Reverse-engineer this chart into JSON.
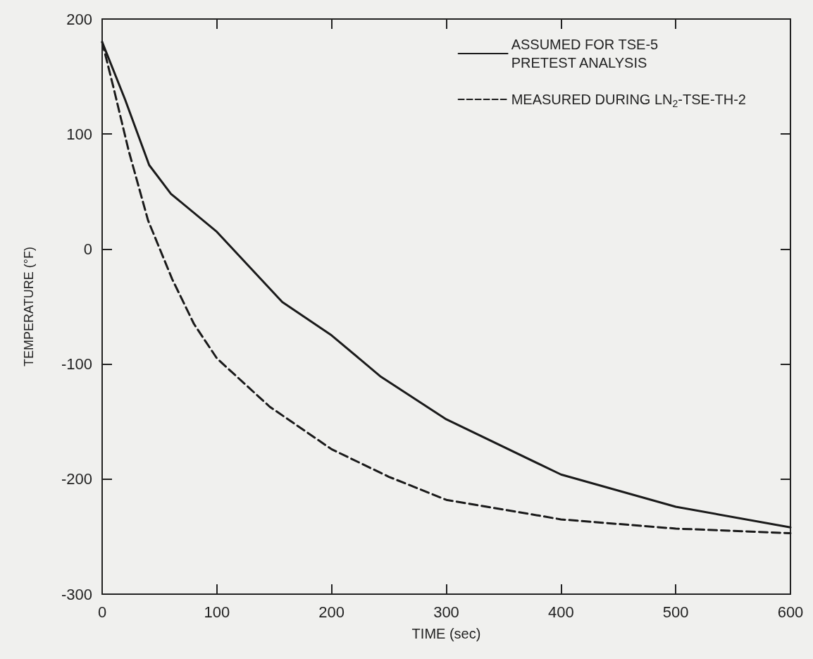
{
  "chart_data": {
    "type": "line",
    "xlabel": "TIME (sec)",
    "ylabel": "TEMPERATURE (°F)",
    "xlim": [
      0,
      600
    ],
    "xticks": [
      0,
      100,
      200,
      300,
      400,
      500,
      600
    ],
    "ylim": [
      -300,
      200
    ],
    "yticks": [
      -300,
      -200,
      -100,
      0,
      100,
      200
    ],
    "grid": false,
    "legend": "top right",
    "marker": "none",
    "series": [
      {
        "name": "ASSUMED FOR TSE-5\nPRETEST ANALYSIS",
        "color": "#1a1a1a",
        "line_style": "solid",
        "x": [
          0,
          20,
          41,
          60,
          100,
          157,
          200,
          243,
          300,
          400,
          500,
          600
        ],
        "values": [
          180,
          130,
          73,
          48,
          15,
          -46,
          -75,
          -111,
          -148,
          -196,
          -224,
          -242
        ]
      },
      {
        "name": "MEASURED DURING LN$_{2}$-TSE-TH-2",
        "color": "#1a1a1a",
        "line_style": "dashed",
        "x": [
          0,
          10,
          23,
          40,
          61,
          80,
          100,
          146,
          200,
          250,
          300,
          400,
          500,
          600
        ],
        "values": [
          180,
          140,
          86,
          25,
          -26,
          -65,
          -95,
          -137,
          -174,
          -198,
          -218,
          -235,
          -243,
          -247
        ]
      }
    ]
  }
}
